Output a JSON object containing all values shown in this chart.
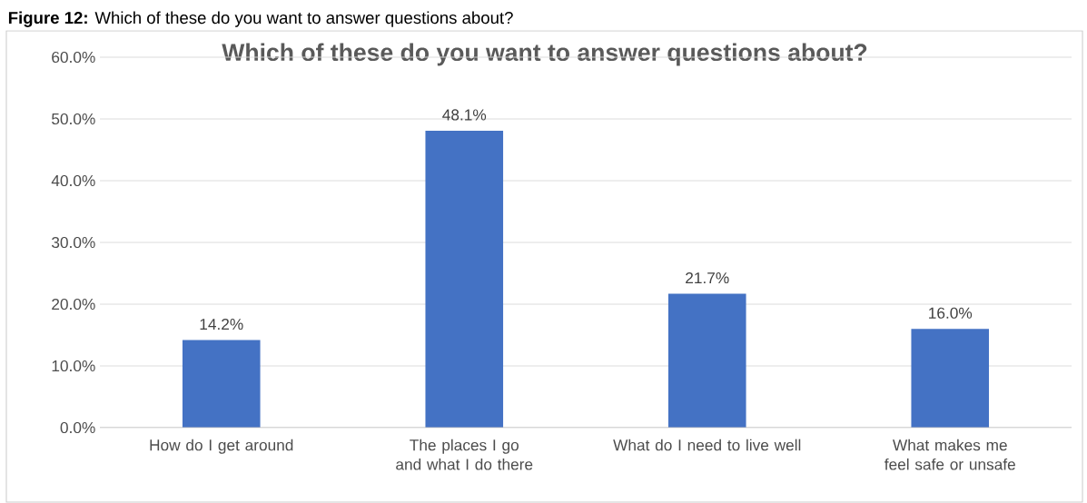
{
  "chart_data": {
    "type": "bar",
    "title": "Which of these do you want to answer questions about?",
    "annotations": [
      "**Figure 12:** Which of these do you want to answer questions about?"
    ],
    "categories": [
      "How do I get around",
      "The places I go and what I do there",
      "What do I need to live well",
      "What makes me feel safe or unsafe"
    ],
    "values": [
      14.2,
      48.1,
      21.7,
      16.0
    ],
    "value_labels": [
      "14.2%",
      "48.1%",
      "21.7%",
      "16.0%"
    ],
    "color": "#4472c4",
    "ylim": [
      0,
      60
    ],
    "yticks": [
      {
        "value": 0,
        "label": "0.0%"
      },
      {
        "value": 10,
        "label": "10.0%"
      },
      {
        "value": 20,
        "label": "20.0%"
      },
      {
        "value": 30,
        "label": "30.0%"
      },
      {
        "value": 40,
        "label": "40.0%"
      },
      {
        "value": 50,
        "label": "50.0%"
      },
      {
        "value": 60,
        "label": "60.0%"
      }
    ],
    "grid": "y"
  }
}
